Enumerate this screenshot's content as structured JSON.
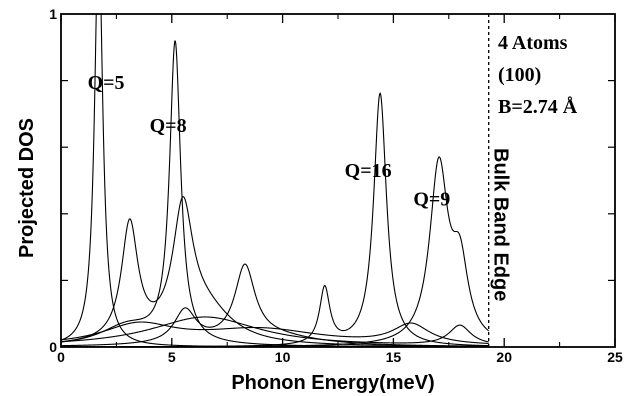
{
  "chart_data": {
    "type": "line",
    "xlabel": "Phonon Energy(meV)",
    "ylabel": "Projected DOS",
    "xlim": [
      0,
      25
    ],
    "ylim": [
      0,
      1
    ],
    "x_ticks": [
      "0",
      "5",
      "10",
      "15",
      "20",
      "25"
    ],
    "y_tick_labels": [
      {
        "value": 0,
        "label": "0"
      },
      {
        "value": 1,
        "label": "1"
      }
    ],
    "y_minor_ticks": [
      0.2,
      0.4,
      0.6,
      0.8
    ],
    "grid": false,
    "legend": "none",
    "annotations": {
      "info_lines": [
        "4 Atoms",
        "(100)",
        "B=2.74 Å"
      ],
      "peak_labels": [
        {
          "text": "Q=5",
          "x": 1.2,
          "y": 0.775
        },
        {
          "text": "Q=8",
          "x": 4.0,
          "y": 0.645
        },
        {
          "text": "Q=16",
          "x": 12.8,
          "y": 0.51
        },
        {
          "text": "Q=9",
          "x": 15.9,
          "y": 0.425
        }
      ],
      "band_edge_label": "Bulk Band Edge",
      "band_edge_x": 19.3
    },
    "series": [
      {
        "peaks": [
          [
            1.7,
            1.25,
            0.22
          ]
        ],
        "base": 0.0
      },
      {
        "peaks": [
          [
            5.15,
            0.9,
            0.3
          ],
          [
            3.0,
            0.06,
            1.5
          ]
        ],
        "base": 0.0
      },
      {
        "peaks": [
          [
            14.4,
            0.76,
            0.35
          ],
          [
            11.9,
            0.17,
            0.28
          ]
        ],
        "base": 0.0
      },
      {
        "peaks": [
          [
            17.05,
            0.53,
            0.5
          ],
          [
            18.0,
            0.22,
            0.45
          ]
        ],
        "base": 0.0
      },
      {
        "peaks": [
          [
            3.1,
            0.35,
            0.45
          ],
          [
            5.5,
            0.37,
            0.55
          ],
          [
            6.5,
            0.1,
            1.5
          ]
        ],
        "base": 0.0
      },
      {
        "peaks": [
          [
            8.3,
            0.22,
            0.55
          ],
          [
            5.6,
            0.1,
            0.6
          ],
          [
            9.5,
            0.03,
            2.5
          ]
        ],
        "base": 0.0
      },
      {
        "peaks": [
          [
            3.5,
            0.06,
            2.0
          ],
          [
            9.0,
            0.05,
            3.5
          ],
          [
            15.8,
            0.06,
            1.0
          ]
        ],
        "base": 0.0
      },
      {
        "peaks": [
          [
            6.5,
            0.09,
            3.0
          ],
          [
            18.0,
            0.06,
            0.6
          ]
        ],
        "base": 0.0
      }
    ]
  }
}
